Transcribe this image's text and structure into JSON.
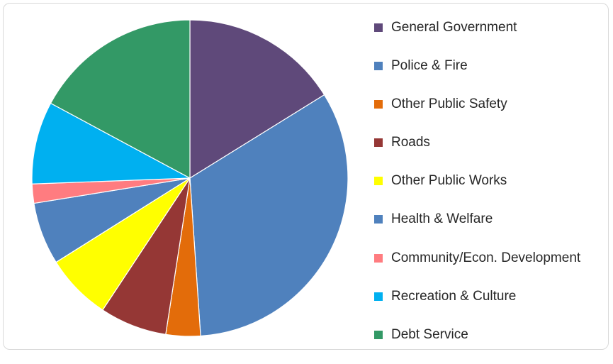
{
  "chart_data": {
    "type": "pie",
    "title": "",
    "legend_position": "right",
    "start_angle_deg": 0,
    "direction": "clockwise",
    "slices": [
      {
        "label": "General Government",
        "value": 16.5,
        "color": "#5f497a"
      },
      {
        "label": "Police & Fire",
        "value": 33.4,
        "color": "#4f81bd"
      },
      {
        "label": "Other Public Safety",
        "value": 3.6,
        "color": "#e36c0a"
      },
      {
        "label": "Roads",
        "value": 7.0,
        "color": "#953735"
      },
      {
        "label": "Other Public Works",
        "value": 6.9,
        "color": "#ffff00"
      },
      {
        "label": "Health & Welfare",
        "value": 6.5,
        "color": "#4f81bd"
      },
      {
        "label": "Community/Econ. Development",
        "value": 2.0,
        "color": "#ff7c80"
      },
      {
        "label": "Recreation & Culture",
        "value": 8.6,
        "color": "#00b0f0"
      },
      {
        "label": "Debt Service",
        "value": 17.5,
        "color": "#339966"
      }
    ]
  }
}
